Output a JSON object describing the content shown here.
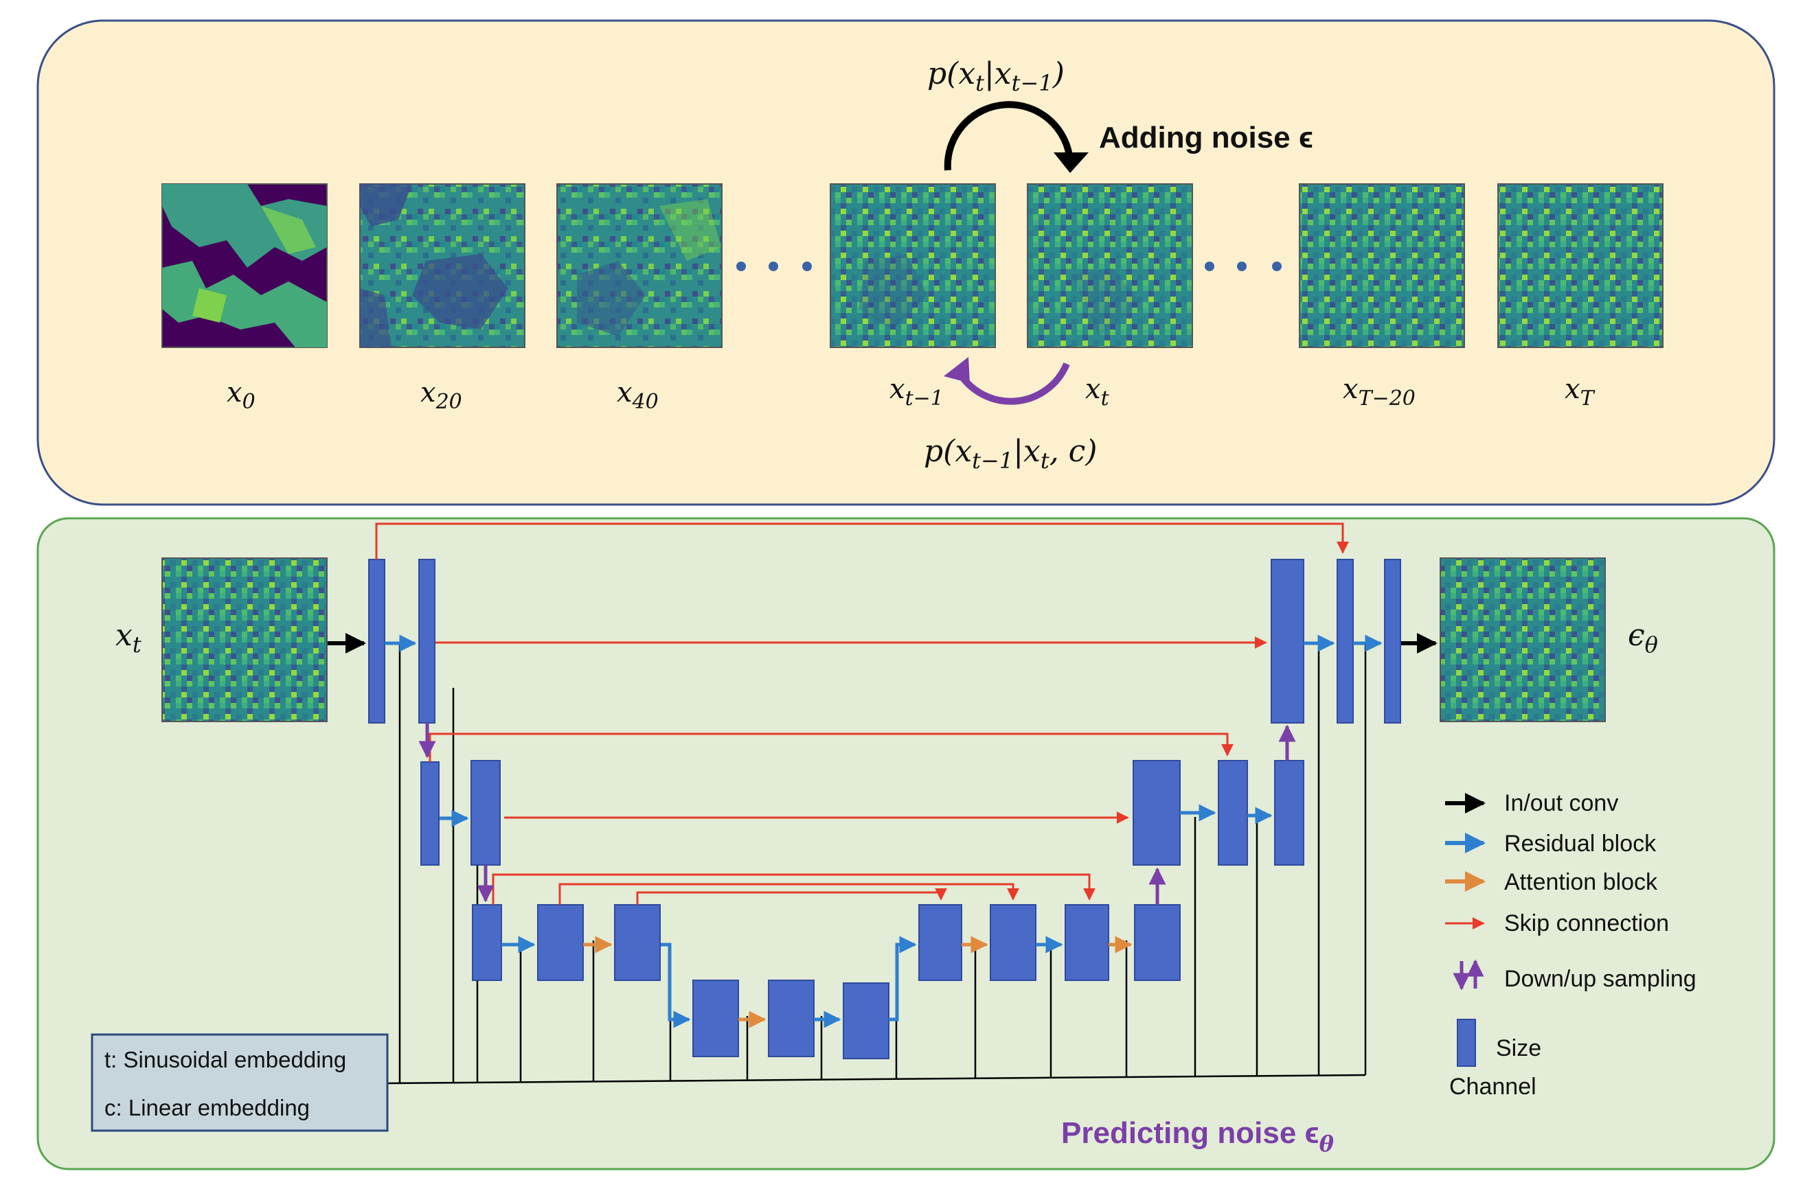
{
  "forward_panel": {
    "title": "Adding noise ϵ",
    "forward_label": {
      "base": "p(x",
      "sub1": "t",
      "mid": "|x",
      "sub2": "t−1",
      "end": ")"
    },
    "reverse_label": {
      "base": "p(x",
      "sub1": "t−1",
      "mid": "|x",
      "sub2": "t",
      "end": ", c)"
    },
    "frames": [
      {
        "var": "x",
        "sub": "0"
      },
      {
        "var": "x",
        "sub": "20"
      },
      {
        "var": "x",
        "sub": "40"
      },
      {
        "var": "x",
        "sub": "t−1"
      },
      {
        "var": "x",
        "sub": "t"
      },
      {
        "var": "x",
        "sub": "T−20"
      },
      {
        "var": "x",
        "sub": "T"
      }
    ]
  },
  "unet_panel": {
    "title": "Predicting noise ϵ",
    "title_sub": "θ",
    "input": {
      "var": "x",
      "sub": "t"
    },
    "output": {
      "var": "ϵ",
      "sub": "θ"
    },
    "embedding": {
      "line1": "t: Sinusoidal embedding",
      "line2": "c: Linear embedding"
    },
    "legend": {
      "in_out": "In/out conv",
      "residual": "Residual block",
      "attention": "Attention block",
      "skip": "Skip connection",
      "sampling": "Down/up sampling",
      "size": "Size",
      "channel": "Channel"
    }
  },
  "colors": {
    "top_bg": "#fcf0cf",
    "top_border": "#3c4f8a",
    "bottom_bg": "#e2ecd6",
    "bottom_border": "#5aa650",
    "block": "#4a6ac8",
    "block_border": "#2f4a9e",
    "residual": "#2f7fd0",
    "attention": "#e08a3e",
    "skip": "#e83a2a",
    "sampling": "#7b3fa8",
    "black": "#000000",
    "purple_text": "#7b3fa8"
  }
}
